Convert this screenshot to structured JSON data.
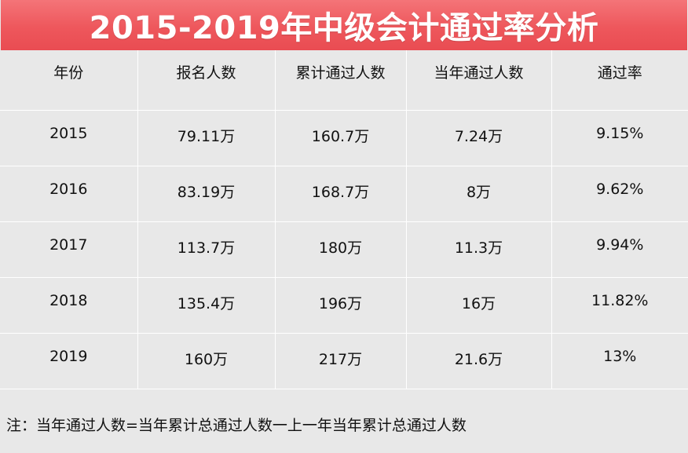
{
  "title": "2015-2019年中级会计通过率分析",
  "table": {
    "headers": [
      "年份",
      "报名人数",
      "累计通过人数",
      "当年通过人数",
      "通过率"
    ],
    "rows": [
      [
        "2015",
        "79.11万",
        "160.7万",
        "7.24万",
        "9.15%"
      ],
      [
        "2016",
        "83.19万",
        "168.7万",
        "8万",
        "9.62%"
      ],
      [
        "2017",
        "113.7万",
        "180万",
        "11.3万",
        "9.94%"
      ],
      [
        "2018",
        "135.4万",
        "196万",
        "16万",
        "11.82%"
      ],
      [
        "2019",
        "160万",
        "217万",
        "21.6万",
        "13%"
      ]
    ]
  },
  "note": "注：当年通过人数=当年累计总通过人数一上一年当年累计总通过人数",
  "colors": {
    "title_bg": "#ee575c",
    "title_text": "#ffffff",
    "table_bg": "#e8e8e8",
    "grid_lines": "#ffffff"
  }
}
